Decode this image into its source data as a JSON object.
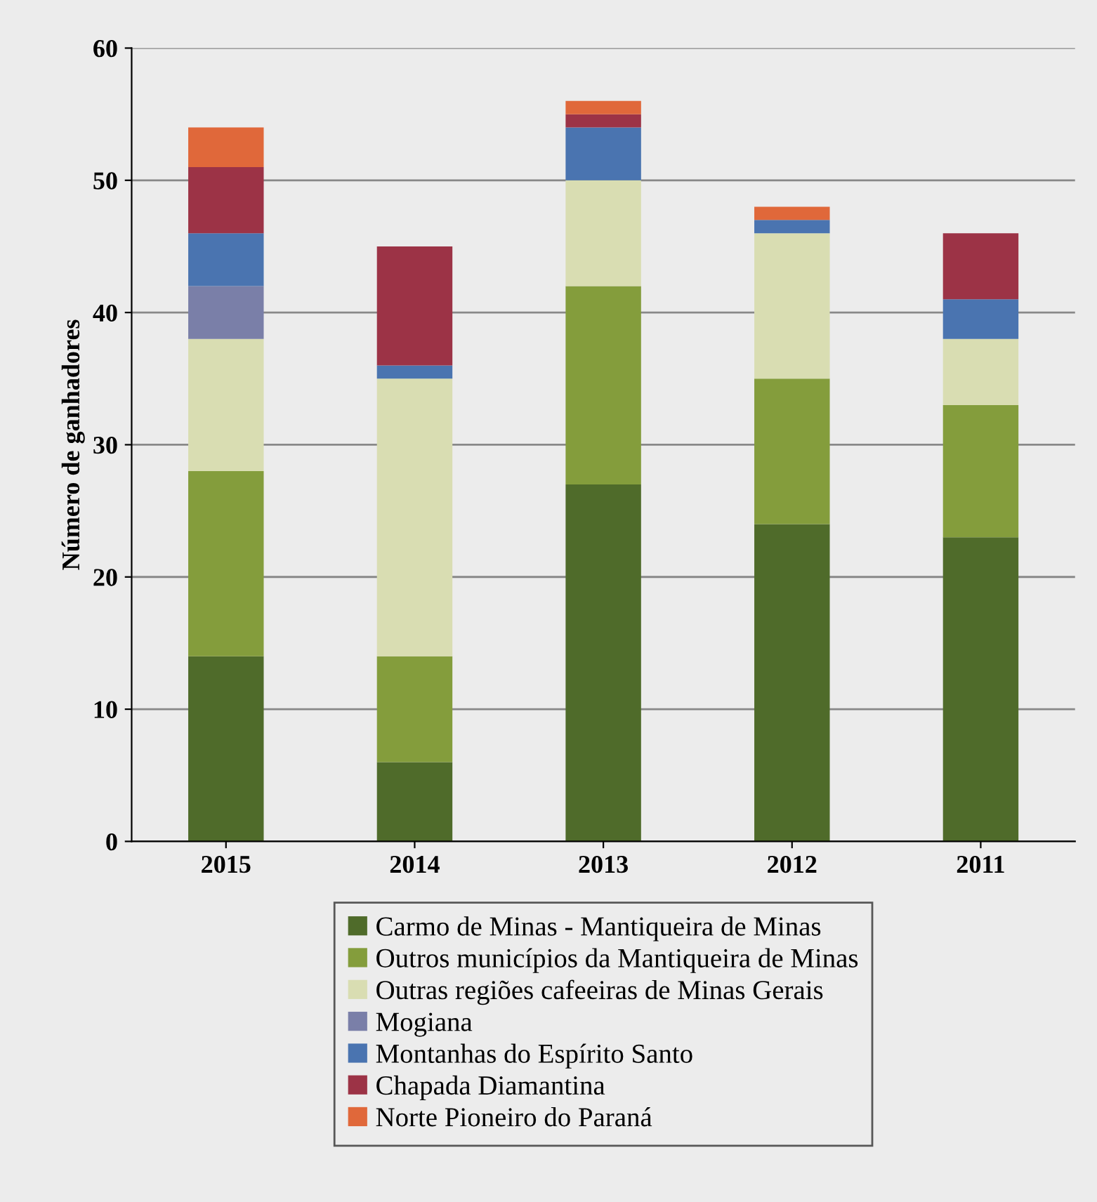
{
  "chart_data": {
    "type": "bar",
    "stacked": true,
    "ylabel": "Número de ganhadores",
    "categories": [
      "2015",
      "2014",
      "2013",
      "2012",
      "2011"
    ],
    "series": [
      {
        "name": "Carmo de Minas - Mantiqueira de Minas",
        "color": "#4f6b2a",
        "values": [
          14,
          6,
          27,
          24,
          23
        ]
      },
      {
        "name": "Outros municípios da Mantiqueira de Minas",
        "color": "#849d3c",
        "values": [
          14,
          8,
          15,
          11,
          10
        ]
      },
      {
        "name": "Outras regiões cafeeiras de Minas Gerais",
        "color": "#d9ddb2",
        "values": [
          10,
          21,
          8,
          11,
          5
        ]
      },
      {
        "name": "Mogiana",
        "color": "#7a7fa8",
        "values": [
          4,
          0,
          0,
          0,
          0
        ]
      },
      {
        "name": "Montanhas do Espírito Santo",
        "color": "#4a74b0",
        "values": [
          4,
          1,
          4,
          1,
          3
        ]
      },
      {
        "name": "Chapada Diamantina",
        "color": "#9c3346",
        "values": [
          5,
          9,
          1,
          0,
          5
        ]
      },
      {
        "name": "Norte Pioneiro do Paraná",
        "color": "#e0683a",
        "values": [
          3,
          0,
          1,
          1,
          0
        ]
      }
    ],
    "ylim": [
      0,
      60
    ],
    "yticks": [
      0,
      10,
      20,
      30,
      40,
      50,
      60
    ],
    "grid": "y",
    "legend": "bottom"
  }
}
